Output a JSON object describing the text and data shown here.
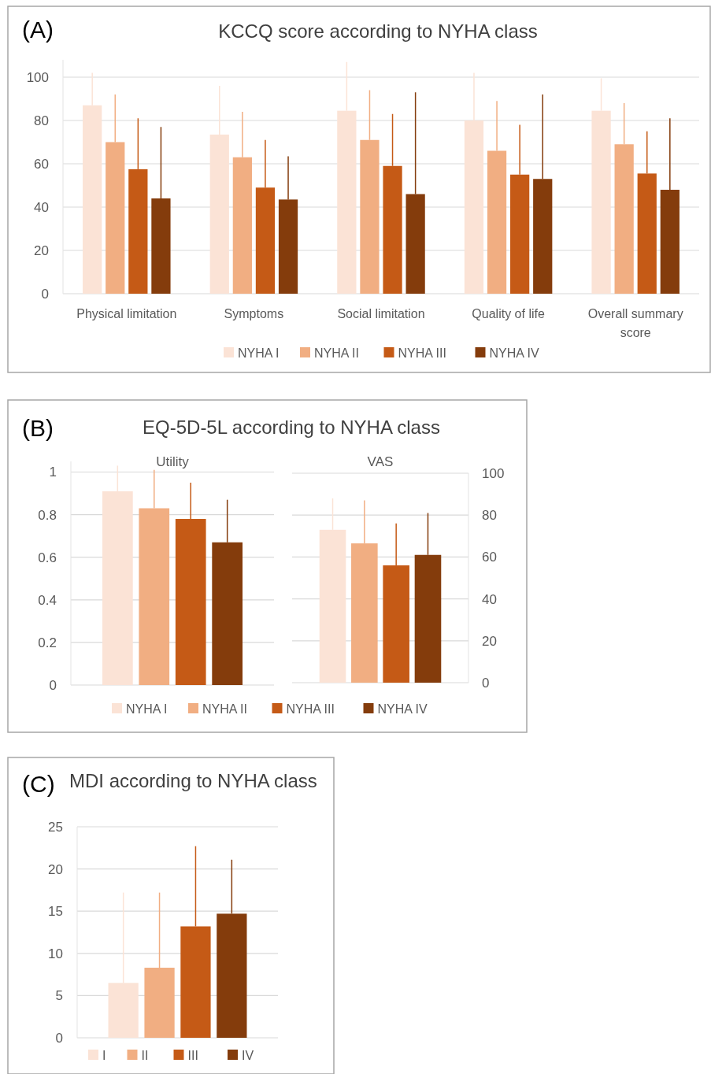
{
  "chart_data": [
    {
      "type": "bar",
      "title": "KCCQ score according to NYHA class",
      "annotations": [
        "(A)"
      ],
      "categories": [
        "Physical limitation",
        "Symptoms",
        "Social limitation",
        "Quality of life",
        "Overall summary score"
      ],
      "ylim": [
        0,
        108
      ],
      "yticks": [
        0,
        20,
        40,
        60,
        80,
        100
      ],
      "grid": "y",
      "legend": "bottom",
      "series": [
        {
          "name": "NYHA I",
          "color": "#fbe3d6",
          "values": [
            87,
            73.5,
            84.5,
            80,
            84.5
          ],
          "errors": [
            [
              87,
              102
            ],
            [
              73.5,
              96
            ],
            [
              84.5,
              107
            ],
            [
              80,
              102
            ],
            [
              84.5,
              99.5
            ]
          ]
        },
        {
          "name": "NYHA II",
          "color": "#f1ae82",
          "values": [
            70,
            63,
            71,
            66,
            69
          ],
          "errors": [
            [
              70,
              92
            ],
            [
              63,
              84
            ],
            [
              71,
              94
            ],
            [
              66,
              89
            ],
            [
              69,
              88
            ]
          ]
        },
        {
          "name": "NYHA III",
          "color": "#c55a16",
          "values": [
            57.5,
            49,
            59,
            55,
            55.5
          ],
          "errors": [
            [
              57.5,
              81
            ],
            [
              49,
              71
            ],
            [
              59,
              83
            ],
            [
              55,
              78
            ],
            [
              55.5,
              75
            ]
          ]
        },
        {
          "name": "NYHA IV",
          "color": "#843c0c",
          "values": [
            44,
            43.5,
            46,
            53,
            48
          ],
          "errors": [
            [
              44,
              77
            ],
            [
              43.5,
              63.5
            ],
            [
              46,
              93
            ],
            [
              53,
              92
            ],
            [
              48,
              81
            ]
          ]
        }
      ]
    },
    {
      "type": "bar",
      "title": "EQ-5D-5L according to NYHA class",
      "subtitle": "Utility",
      "annotations": [
        "(B)"
      ],
      "categories": [
        null
      ],
      "ylim": [
        0,
        1.05
      ],
      "yticks": [
        0,
        0.2,
        0.4,
        0.6,
        0.8,
        1
      ],
      "grid": "y",
      "legend": "bottom",
      "series": [
        {
          "name": "NYHA I",
          "color": "#fbe3d6",
          "values": [
            0.91
          ],
          "errors": [
            [
              0.91,
              1.03
            ]
          ]
        },
        {
          "name": "NYHA II",
          "color": "#f1ae82",
          "values": [
            0.83
          ],
          "errors": [
            [
              0.83,
              1.01
            ]
          ]
        },
        {
          "name": "NYHA III",
          "color": "#c55a16",
          "values": [
            0.78
          ],
          "errors": [
            [
              0.78,
              0.95
            ]
          ]
        },
        {
          "name": "NYHA IV",
          "color": "#843c0c",
          "values": [
            0.67
          ],
          "errors": [
            [
              0.67,
              0.87
            ]
          ]
        }
      ]
    },
    {
      "type": "bar",
      "subtitle": "VAS",
      "categories": [
        null
      ],
      "ylim": [
        0,
        100
      ],
      "yticks": [
        0,
        20,
        40,
        60,
        80,
        100
      ],
      "grid": "y",
      "series": [
        {
          "color": "#fbe3d6",
          "values": [
            73
          ],
          "errors": [
            [
              73,
              88
            ]
          ]
        },
        {
          "color": "#f1ae82",
          "values": [
            66.5
          ],
          "errors": [
            [
              66.5,
              87
            ]
          ]
        },
        {
          "color": "#c55a16",
          "values": [
            56
          ],
          "errors": [
            [
              56,
              76
            ]
          ]
        },
        {
          "color": "#843c0c",
          "values": [
            61
          ],
          "errors": [
            [
              61,
              81
            ]
          ]
        }
      ]
    },
    {
      "type": "bar",
      "title": "MDI according to NYHA class",
      "annotations": [
        "(C)"
      ],
      "categories": [
        null
      ],
      "ylim": [
        0,
        25
      ],
      "yticks": [
        0,
        5,
        10,
        15,
        20,
        25
      ],
      "grid": "y",
      "legend": "bottom",
      "series": [
        {
          "name": "I",
          "color": "#fbe3d6",
          "values": [
            6.5
          ],
          "errors": [
            [
              6.5,
              17.2
            ]
          ]
        },
        {
          "name": "II",
          "color": "#f1ae82",
          "values": [
            8.3
          ],
          "errors": [
            [
              8.3,
              17.2
            ]
          ]
        },
        {
          "name": "III",
          "color": "#c55a16",
          "values": [
            13.2
          ],
          "errors": [
            [
              13.2,
              22.7
            ]
          ]
        },
        {
          "name": "IV",
          "color": "#843c0c",
          "values": [
            14.7
          ],
          "errors": [
            [
              14.7,
              21.1
            ]
          ]
        }
      ]
    }
  ]
}
